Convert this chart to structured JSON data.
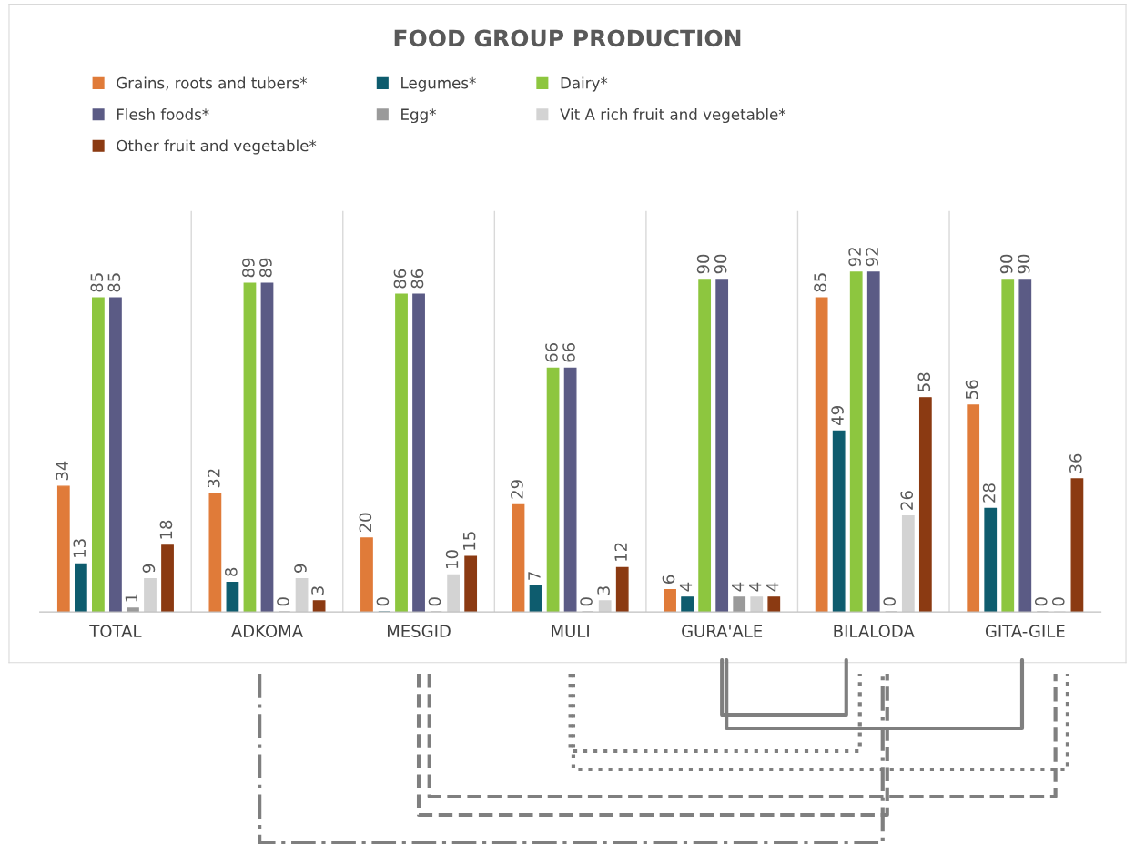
{
  "chart_data": {
    "type": "bar",
    "title": "FOOD GROUP PRODUCTION",
    "categories": [
      "TOTAL",
      "ADKOMA",
      "MESGID",
      "MULI",
      "GURA'ALE",
      "BILALODA",
      "GITA-GILE"
    ],
    "series": [
      {
        "name": "Grains, roots and tubers*",
        "color": "#e07b39",
        "values": [
          34,
          32,
          20,
          29,
          6,
          85,
          56
        ]
      },
      {
        "name": "Legumes*",
        "color": "#0e5c6e",
        "values": [
          13,
          8,
          0,
          7,
          4,
          49,
          28
        ]
      },
      {
        "name": "Dairy*",
        "color": "#8dc63f",
        "values": [
          85,
          89,
          86,
          66,
          90,
          92,
          90
        ]
      },
      {
        "name": "Flesh foods*",
        "color": "#5b5b85",
        "values": [
          85,
          89,
          86,
          66,
          90,
          92,
          90
        ]
      },
      {
        "name": "Egg*",
        "color": "#9a9a9a",
        "values": [
          1,
          0,
          0,
          0,
          4,
          0,
          0
        ]
      },
      {
        "name": "Vit A rich fruit and vegetable*",
        "color": "#d3d3d3",
        "values": [
          9,
          9,
          10,
          3,
          4,
          26,
          0
        ]
      },
      {
        "name": "Other fruit and vegetable*",
        "color": "#8b3a12",
        "values": [
          18,
          3,
          15,
          12,
          4,
          58,
          36
        ]
      }
    ],
    "data_labels": true,
    "legend": "top",
    "grid": false,
    "tick_labels": "x"
  }
}
